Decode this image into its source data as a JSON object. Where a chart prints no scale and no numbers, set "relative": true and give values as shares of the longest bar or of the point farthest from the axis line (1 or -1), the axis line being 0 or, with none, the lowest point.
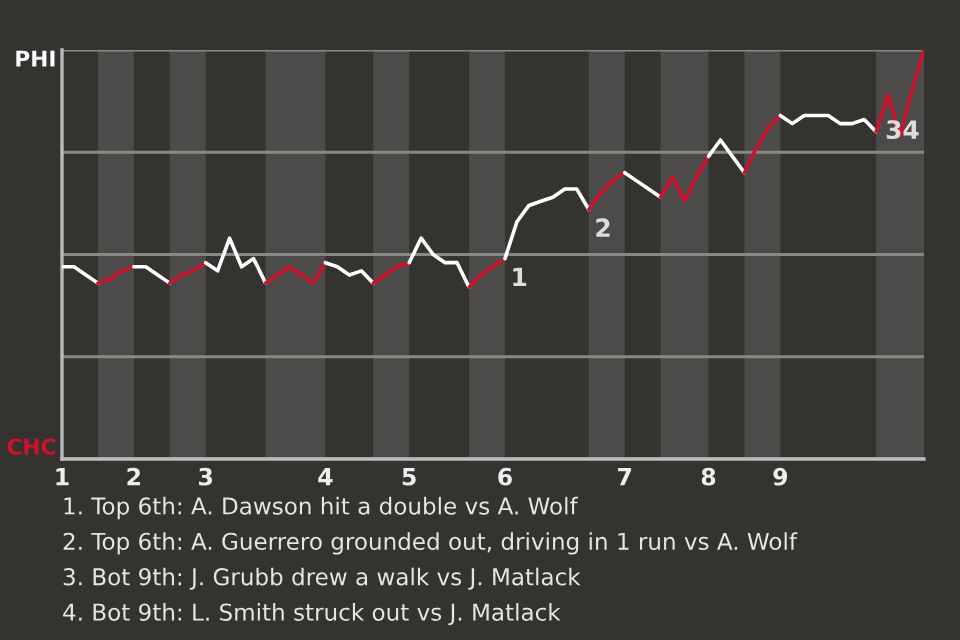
{
  "chart_data": {
    "type": "line",
    "relative": true,
    "categories": [
      "1",
      null,
      null,
      null,
      null,
      null,
      "2",
      null,
      null,
      null,
      null,
      null,
      "3",
      null,
      null,
      null,
      null,
      null,
      null,
      null,
      null,
      null,
      "4",
      null,
      null,
      null,
      null,
      null,
      null,
      "5",
      null,
      null,
      null,
      null,
      null,
      null,
      null,
      "6",
      null,
      null,
      null,
      null,
      null,
      null,
      null,
      null,
      null,
      "7",
      null,
      null,
      null,
      null,
      null,
      null,
      "8",
      null,
      null,
      null,
      null,
      null,
      "9",
      null,
      null,
      null,
      null,
      null,
      null,
      null,
      null,
      null,
      null,
      null,
      null
    ],
    "series": [
      {
        "color": "#ffffff",
        "values": [
          0.47,
          0.47,
          0.45,
          0.43,
          null,
          null,
          null,
          null,
          null,
          null,
          null,
          null,
          null,
          null,
          null,
          null,
          null,
          null,
          null,
          null,
          null,
          null,
          null,
          null,
          null,
          null,
          null,
          null,
          null,
          null,
          null,
          null,
          null,
          null,
          null,
          null,
          null,
          null,
          null,
          null,
          null,
          null,
          null,
          null,
          null,
          null,
          null,
          null,
          null,
          null,
          null,
          null,
          null,
          null,
          null,
          null,
          null,
          null,
          null,
          null,
          null,
          null,
          null,
          null,
          null,
          null,
          null,
          null,
          null,
          null,
          null,
          null,
          null
        ]
      },
      {
        "color": "#d0112b",
        "values": [
          null,
          null,
          null,
          0.43,
          0.44,
          0.46,
          0.47,
          null,
          null,
          null,
          null,
          null,
          null,
          null,
          null,
          null,
          null,
          null,
          null,
          null,
          null,
          null,
          null,
          null,
          null,
          null,
          null,
          null,
          null,
          null,
          null,
          null,
          null,
          null,
          null,
          null,
          null,
          null,
          null,
          null,
          null,
          null,
          null,
          null,
          null,
          null,
          null,
          null,
          null,
          null,
          null,
          null,
          null,
          null,
          null,
          null,
          null,
          null,
          null,
          null,
          null,
          null,
          null,
          null,
          null,
          null,
          null,
          null,
          null,
          null,
          null,
          null,
          null
        ]
      },
      {
        "color": "#ffffff",
        "values": [
          null,
          null,
          null,
          null,
          null,
          null,
          0.47,
          0.47,
          0.45,
          0.43,
          null,
          null,
          null,
          null,
          null,
          null,
          null,
          null,
          null,
          null,
          null,
          null,
          null,
          null,
          null,
          null,
          null,
          null,
          null,
          null,
          null,
          null,
          null,
          null,
          null,
          null,
          null,
          null,
          null,
          null,
          null,
          null,
          null,
          null,
          null,
          null,
          null,
          null,
          null,
          null,
          null,
          null,
          null,
          null,
          null,
          null,
          null,
          null,
          null,
          null,
          null,
          null,
          null,
          null,
          null,
          null,
          null,
          null,
          null,
          null,
          null,
          null,
          null
        ]
      },
      {
        "color": "#d0112b",
        "values": [
          null,
          null,
          null,
          null,
          null,
          null,
          null,
          null,
          null,
          0.43,
          0.45,
          0.46,
          0.48,
          null,
          null,
          null,
          null,
          null,
          null,
          null,
          null,
          null,
          null,
          null,
          null,
          null,
          null,
          null,
          null,
          null,
          null,
          null,
          null,
          null,
          null,
          null,
          null,
          null,
          null,
          null,
          null,
          null,
          null,
          null,
          null,
          null,
          null,
          null,
          null,
          null,
          null,
          null,
          null,
          null,
          null,
          null,
          null,
          null,
          null,
          null,
          null,
          null,
          null,
          null,
          null,
          null,
          null,
          null,
          null,
          null,
          null,
          null,
          null
        ]
      },
      {
        "color": "#ffffff",
        "values": [
          null,
          null,
          null,
          null,
          null,
          null,
          null,
          null,
          null,
          null,
          null,
          null,
          0.48,
          0.46,
          0.54,
          0.47,
          0.49,
          0.43,
          null,
          null,
          null,
          null,
          null,
          null,
          null,
          null,
          null,
          null,
          null,
          null,
          null,
          null,
          null,
          null,
          null,
          null,
          null,
          null,
          null,
          null,
          null,
          null,
          null,
          null,
          null,
          null,
          null,
          null,
          null,
          null,
          null,
          null,
          null,
          null,
          null,
          null,
          null,
          null,
          null,
          null,
          null,
          null,
          null,
          null,
          null,
          null,
          null,
          null,
          null,
          null,
          null,
          null,
          null
        ]
      },
      {
        "color": "#d0112b",
        "values": [
          null,
          null,
          null,
          null,
          null,
          null,
          null,
          null,
          null,
          null,
          null,
          null,
          null,
          null,
          null,
          null,
          null,
          0.43,
          0.45,
          0.47,
          0.45,
          0.43,
          0.48,
          null,
          null,
          null,
          null,
          null,
          null,
          null,
          null,
          null,
          null,
          null,
          null,
          null,
          null,
          null,
          null,
          null,
          null,
          null,
          null,
          null,
          null,
          null,
          null,
          null,
          null,
          null,
          null,
          null,
          null,
          null,
          null,
          null,
          null,
          null,
          null,
          null,
          null,
          null,
          null,
          null,
          null,
          null,
          null,
          null,
          null,
          null,
          null,
          null,
          null
        ]
      },
      {
        "color": "#ffffff",
        "values": [
          null,
          null,
          null,
          null,
          null,
          null,
          null,
          null,
          null,
          null,
          null,
          null,
          null,
          null,
          null,
          null,
          null,
          null,
          null,
          null,
          null,
          null,
          0.48,
          0.47,
          0.45,
          0.46,
          0.43,
          null,
          null,
          null,
          null,
          null,
          null,
          null,
          null,
          null,
          null,
          null,
          null,
          null,
          null,
          null,
          null,
          null,
          null,
          null,
          null,
          null,
          null,
          null,
          null,
          null,
          null,
          null,
          null,
          null,
          null,
          null,
          null,
          null,
          null,
          null,
          null,
          null,
          null,
          null,
          null,
          null,
          null,
          null,
          null,
          null,
          null
        ]
      },
      {
        "color": "#d0112b",
        "values": [
          null,
          null,
          null,
          null,
          null,
          null,
          null,
          null,
          null,
          null,
          null,
          null,
          null,
          null,
          null,
          null,
          null,
          null,
          null,
          null,
          null,
          null,
          null,
          null,
          null,
          null,
          0.43,
          0.45,
          0.47,
          0.48,
          null,
          null,
          null,
          null,
          null,
          null,
          null,
          null,
          null,
          null,
          null,
          null,
          null,
          null,
          null,
          null,
          null,
          null,
          null,
          null,
          null,
          null,
          null,
          null,
          null,
          null,
          null,
          null,
          null,
          null,
          null,
          null,
          null,
          null,
          null,
          null,
          null,
          null,
          null,
          null,
          null,
          null,
          null
        ]
      },
      {
        "color": "#ffffff",
        "values": [
          null,
          null,
          null,
          null,
          null,
          null,
          null,
          null,
          null,
          null,
          null,
          null,
          null,
          null,
          null,
          null,
          null,
          null,
          null,
          null,
          null,
          null,
          null,
          null,
          null,
          null,
          null,
          null,
          null,
          0.48,
          0.54,
          0.5,
          0.48,
          0.48,
          0.42,
          null,
          null,
          null,
          null,
          null,
          null,
          null,
          null,
          null,
          null,
          null,
          null,
          null,
          null,
          null,
          null,
          null,
          null,
          null,
          null,
          null,
          null,
          null,
          null,
          null,
          null,
          null,
          null,
          null,
          null,
          null,
          null,
          null,
          null,
          null,
          null,
          null,
          null
        ]
      },
      {
        "color": "#d0112b",
        "values": [
          null,
          null,
          null,
          null,
          null,
          null,
          null,
          null,
          null,
          null,
          null,
          null,
          null,
          null,
          null,
          null,
          null,
          null,
          null,
          null,
          null,
          null,
          null,
          null,
          null,
          null,
          null,
          null,
          null,
          null,
          null,
          null,
          null,
          null,
          0.42,
          0.45,
          0.47,
          0.49,
          null,
          null,
          null,
          null,
          null,
          null,
          null,
          null,
          null,
          null,
          null,
          null,
          null,
          null,
          null,
          null,
          null,
          null,
          null,
          null,
          null,
          null,
          null,
          null,
          null,
          null,
          null,
          null,
          null,
          null,
          null,
          null,
          null,
          null,
          null
        ]
      },
      {
        "color": "#ffffff",
        "values": [
          null,
          null,
          null,
          null,
          null,
          null,
          null,
          null,
          null,
          null,
          null,
          null,
          null,
          null,
          null,
          null,
          null,
          null,
          null,
          null,
          null,
          null,
          null,
          null,
          null,
          null,
          null,
          null,
          null,
          null,
          null,
          null,
          null,
          null,
          null,
          null,
          null,
          0.49,
          0.58,
          0.62,
          0.63,
          0.64,
          0.66,
          0.66,
          0.61,
          null,
          null,
          null,
          null,
          null,
          null,
          null,
          null,
          null,
          null,
          null,
          null,
          null,
          null,
          null,
          null,
          null,
          null,
          null,
          null,
          null,
          null,
          null,
          null,
          null,
          null,
          null,
          null
        ]
      },
      {
        "color": "#d0112b",
        "values": [
          null,
          null,
          null,
          null,
          null,
          null,
          null,
          null,
          null,
          null,
          null,
          null,
          null,
          null,
          null,
          null,
          null,
          null,
          null,
          null,
          null,
          null,
          null,
          null,
          null,
          null,
          null,
          null,
          null,
          null,
          null,
          null,
          null,
          null,
          null,
          null,
          null,
          null,
          null,
          null,
          null,
          null,
          null,
          null,
          0.61,
          0.65,
          0.68,
          0.7,
          null,
          null,
          null,
          null,
          null,
          null,
          null,
          null,
          null,
          null,
          null,
          null,
          null,
          null,
          null,
          null,
          null,
          null,
          null,
          null,
          null,
          null,
          null,
          null,
          null
        ]
      },
      {
        "color": "#ffffff",
        "values": [
          null,
          null,
          null,
          null,
          null,
          null,
          null,
          null,
          null,
          null,
          null,
          null,
          null,
          null,
          null,
          null,
          null,
          null,
          null,
          null,
          null,
          null,
          null,
          null,
          null,
          null,
          null,
          null,
          null,
          null,
          null,
          null,
          null,
          null,
          null,
          null,
          null,
          null,
          null,
          null,
          null,
          null,
          null,
          null,
          null,
          null,
          null,
          0.7,
          0.68,
          0.66,
          0.64,
          null,
          null,
          null,
          null,
          null,
          null,
          null,
          null,
          null,
          null,
          null,
          null,
          null,
          null,
          null,
          null,
          null,
          null,
          null,
          null,
          null,
          null
        ]
      },
      {
        "color": "#d0112b",
        "values": [
          null,
          null,
          null,
          null,
          null,
          null,
          null,
          null,
          null,
          null,
          null,
          null,
          null,
          null,
          null,
          null,
          null,
          null,
          null,
          null,
          null,
          null,
          null,
          null,
          null,
          null,
          null,
          null,
          null,
          null,
          null,
          null,
          null,
          null,
          null,
          null,
          null,
          null,
          null,
          null,
          null,
          null,
          null,
          null,
          null,
          null,
          null,
          null,
          null,
          null,
          0.64,
          0.69,
          0.63,
          0.69,
          0.74,
          null,
          null,
          null,
          null,
          null,
          null,
          null,
          null,
          null,
          null,
          null,
          null,
          null,
          null,
          null,
          null,
          null,
          null
        ]
      },
      {
        "color": "#ffffff",
        "values": [
          null,
          null,
          null,
          null,
          null,
          null,
          null,
          null,
          null,
          null,
          null,
          null,
          null,
          null,
          null,
          null,
          null,
          null,
          null,
          null,
          null,
          null,
          null,
          null,
          null,
          null,
          null,
          null,
          null,
          null,
          null,
          null,
          null,
          null,
          null,
          null,
          null,
          null,
          null,
          null,
          null,
          null,
          null,
          null,
          null,
          null,
          null,
          null,
          null,
          null,
          null,
          null,
          null,
          null,
          0.74,
          0.78,
          0.74,
          0.7,
          null,
          null,
          null,
          null,
          null,
          null,
          null,
          null,
          null,
          null,
          null,
          null,
          null,
          null,
          null
        ]
      },
      {
        "color": "#d0112b",
        "values": [
          null,
          null,
          null,
          null,
          null,
          null,
          null,
          null,
          null,
          null,
          null,
          null,
          null,
          null,
          null,
          null,
          null,
          null,
          null,
          null,
          null,
          null,
          null,
          null,
          null,
          null,
          null,
          null,
          null,
          null,
          null,
          null,
          null,
          null,
          null,
          null,
          null,
          null,
          null,
          null,
          null,
          null,
          null,
          null,
          null,
          null,
          null,
          null,
          null,
          null,
          null,
          null,
          null,
          null,
          null,
          null,
          null,
          0.7,
          0.76,
          0.81,
          0.84,
          null,
          null,
          null,
          null,
          null,
          null,
          null,
          null,
          null,
          null,
          null,
          null
        ]
      },
      {
        "color": "#ffffff",
        "values": [
          null,
          null,
          null,
          null,
          null,
          null,
          null,
          null,
          null,
          null,
          null,
          null,
          null,
          null,
          null,
          null,
          null,
          null,
          null,
          null,
          null,
          null,
          null,
          null,
          null,
          null,
          null,
          null,
          null,
          null,
          null,
          null,
          null,
          null,
          null,
          null,
          null,
          null,
          null,
          null,
          null,
          null,
          null,
          null,
          null,
          null,
          null,
          null,
          null,
          null,
          null,
          null,
          null,
          null,
          null,
          null,
          null,
          null,
          null,
          null,
          0.84,
          0.82,
          0.84,
          0.84,
          0.84,
          0.82,
          0.82,
          0.83,
          0.8,
          null,
          null,
          null,
          null
        ]
      },
      {
        "color": "#d0112b",
        "values": [
          null,
          null,
          null,
          null,
          null,
          null,
          null,
          null,
          null,
          null,
          null,
          null,
          null,
          null,
          null,
          null,
          null,
          null,
          null,
          null,
          null,
          null,
          null,
          null,
          null,
          null,
          null,
          null,
          null,
          null,
          null,
          null,
          null,
          null,
          null,
          null,
          null,
          null,
          null,
          null,
          null,
          null,
          null,
          null,
          null,
          null,
          null,
          null,
          null,
          null,
          null,
          null,
          null,
          null,
          null,
          null,
          null,
          null,
          null,
          null,
          null,
          null,
          null,
          null,
          null,
          null,
          null,
          null,
          0.8,
          0.89,
          0.79,
          0.9,
          1
        ]
      }
    ],
    "ref_lines": [
      {
        "axis": "y",
        "value": 1,
        "label": "PHI"
      },
      {
        "axis": "y",
        "value": 0.75
      },
      {
        "axis": "y",
        "value": 0.5
      },
      {
        "axis": "y",
        "value": 0.25
      },
      {
        "axis": "y",
        "value": 0,
        "label": "CHC"
      }
    ],
    "annotations": [
      {
        "text": "1",
        "x": "6",
        "y": 0.49
      },
      {
        "text": "2",
        "y": 0.61
      },
      "3",
      "4",
      "1. Top 6th: A. Dawson hit a double vs A. Wolf",
      "2. Top 6th: A. Guerrero grounded out, driving in 1 run vs A. Wolf",
      "3. Bot 9th: J. Grubb drew a walk vs J. Matlack",
      "4. Bot 9th: L. Smith struck out vs J. Matlack"
    ]
  }
}
